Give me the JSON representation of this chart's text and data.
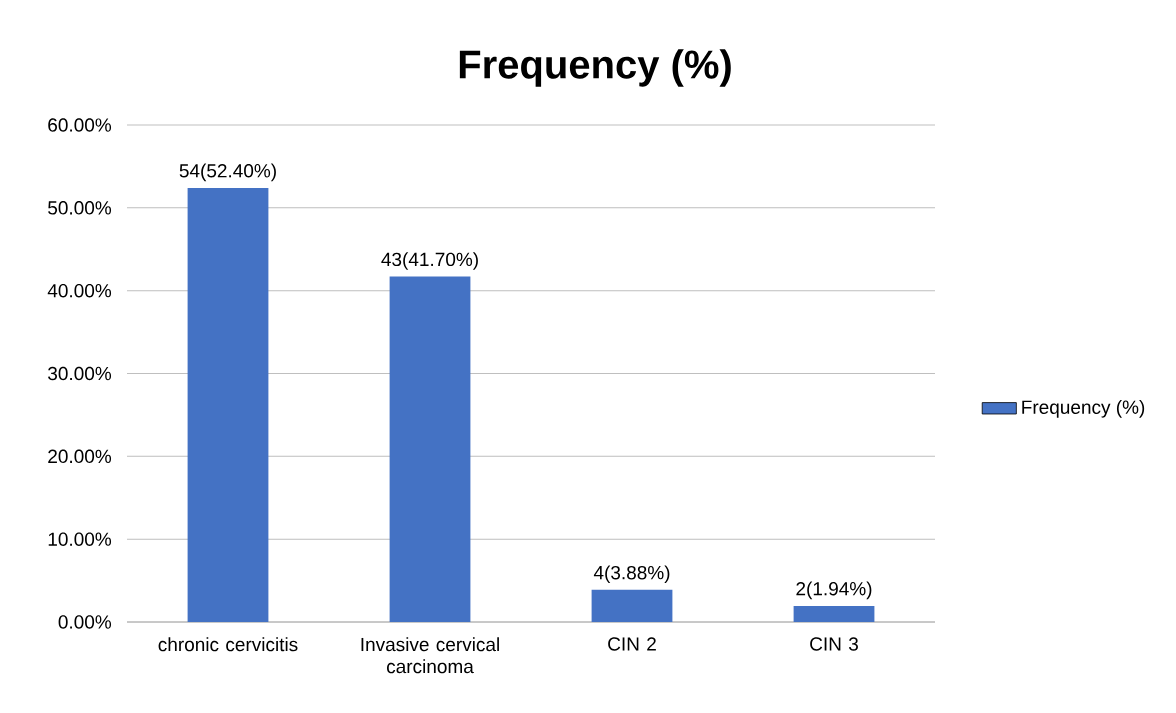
{
  "chart_data": {
    "type": "bar",
    "title": "Frequency (%)",
    "categories": [
      "chronic cervicitis",
      "Invasive cervical carcinoma",
      "CIN 2",
      "CIN 3"
    ],
    "series": [
      {
        "name": "Frequency (%)",
        "color": "#4472c4",
        "values": [
          52.4,
          41.7,
          3.88,
          1.94
        ]
      }
    ],
    "value_labels": [
      "54(52.40%)",
      "43(41.70%)",
      "4(3.88%)",
      "2(1.94%)"
    ],
    "ylim": [
      0,
      60
    ],
    "yticks": [
      {
        "value": 0,
        "label": "0.00%"
      },
      {
        "value": 10,
        "label": "10.00%"
      },
      {
        "value": 20,
        "label": "20.00%"
      },
      {
        "value": 30,
        "label": "30.00%"
      },
      {
        "value": 40,
        "label": "40.00%"
      },
      {
        "value": 50,
        "label": "50.00%"
      },
      {
        "value": 60,
        "label": "60.00%"
      }
    ],
    "grid": "y",
    "legend": "right"
  }
}
